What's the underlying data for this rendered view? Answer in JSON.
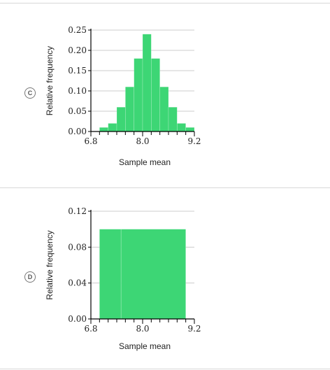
{
  "options": [
    {
      "choice_label": "C",
      "chart_data": {
        "type": "bar",
        "xlabel": "Sample mean",
        "ylabel": "Relative frequency",
        "xlim": [
          6.8,
          9.2
        ],
        "ylim": [
          0,
          0.25
        ],
        "x_ticks": [
          6.8,
          8.0,
          9.2
        ],
        "y_ticks": [
          0.0,
          0.05,
          0.1,
          0.15,
          0.2,
          0.25
        ],
        "y_tick_labels": [
          "0.00",
          "0.05",
          "0.10",
          "0.15",
          "0.20",
          "0.25"
        ],
        "x_tick_labels": [
          "6.8",
          "8.0",
          "9.2"
        ],
        "bin_edges": [
          6.8,
          7.0,
          7.2,
          7.4,
          7.6,
          7.8,
          8.0,
          8.2,
          8.4,
          8.6,
          8.8,
          9.0,
          9.2
        ],
        "values": [
          0.0,
          0.01,
          0.02,
          0.06,
          0.11,
          0.18,
          0.24,
          0.18,
          0.11,
          0.06,
          0.02,
          0.01
        ],
        "grid": true,
        "bar_color": "#3dd675"
      }
    },
    {
      "choice_label": "D",
      "chart_data": {
        "type": "bar",
        "xlabel": "Sample mean",
        "ylabel": "Relative frequency",
        "xlim": [
          6.8,
          9.2
        ],
        "ylim": [
          0,
          0.12
        ],
        "x_ticks": [
          6.8,
          8.0,
          9.2
        ],
        "y_ticks": [
          0.0,
          0.04,
          0.08,
          0.12
        ],
        "y_tick_labels": [
          "0.00",
          "0.04",
          "0.08",
          "0.12"
        ],
        "x_tick_labels": [
          "6.8",
          "8.0",
          "9.2"
        ],
        "bin_edges": [
          7.0,
          7.5,
          9.0
        ],
        "values": [
          0.1,
          0.1
        ],
        "grid": true,
        "bar_color": "#3dd675"
      }
    }
  ]
}
